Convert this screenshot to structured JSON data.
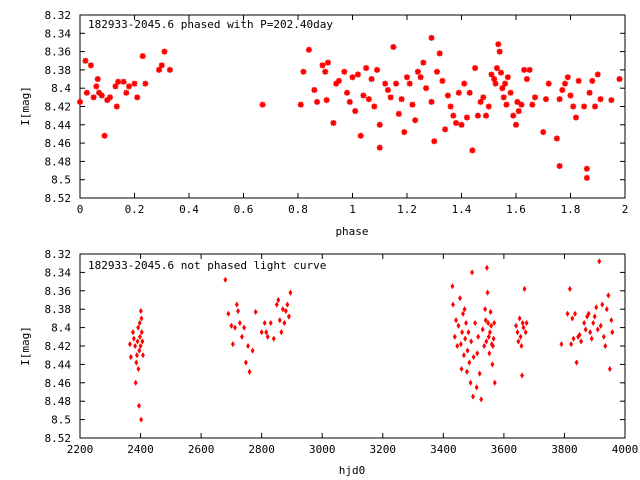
{
  "chart_data": [
    {
      "type": "scatter",
      "title": "182933-2045.6 phased with P=202.40day",
      "xlabel": "phase",
      "ylabel": "I[mag]",
      "xlim": [
        0,
        2
      ],
      "ylim": [
        8.52,
        8.32
      ],
      "y_inverted": true,
      "grid": false,
      "marker": "star",
      "color": "#ff0000",
      "xticks": [
        "0",
        "0.2",
        "0.4",
        "0.6",
        "0.8",
        "1",
        "1.2",
        "1.4",
        "1.6",
        "1.8",
        "2"
      ],
      "yticks": [
        "8.32",
        "8.34",
        "8.36",
        "8.38",
        "8.4",
        "8.42",
        "8.44",
        "8.46",
        "8.48",
        "8.5",
        "8.52"
      ],
      "points": [
        [
          0.0,
          8.415
        ],
        [
          0.02,
          8.37
        ],
        [
          0.025,
          8.405
        ],
        [
          0.04,
          8.375
        ],
        [
          0.05,
          8.41
        ],
        [
          0.06,
          8.398
        ],
        [
          0.065,
          8.39
        ],
        [
          0.07,
          8.405
        ],
        [
          0.08,
          8.408
        ],
        [
          0.09,
          8.452
        ],
        [
          0.1,
          8.413
        ],
        [
          0.11,
          8.41
        ],
        [
          0.13,
          8.398
        ],
        [
          0.135,
          8.42
        ],
        [
          0.14,
          8.393
        ],
        [
          0.16,
          8.393
        ],
        [
          0.17,
          8.405
        ],
        [
          0.18,
          8.398
        ],
        [
          0.2,
          8.395
        ],
        [
          0.21,
          8.41
        ],
        [
          0.23,
          8.365
        ],
        [
          0.24,
          8.395
        ],
        [
          0.29,
          8.38
        ],
        [
          0.3,
          8.375
        ],
        [
          0.31,
          8.36
        ],
        [
          0.33,
          8.38
        ],
        [
          0.67,
          8.418
        ],
        [
          0.81,
          8.418
        ],
        [
          0.82,
          8.382
        ],
        [
          0.84,
          8.358
        ],
        [
          0.86,
          8.402
        ],
        [
          0.87,
          8.415
        ],
        [
          0.89,
          8.375
        ],
        [
          0.9,
          8.382
        ],
        [
          0.905,
          8.413
        ],
        [
          0.91,
          8.372
        ],
        [
          0.93,
          8.438
        ],
        [
          0.94,
          8.395
        ],
        [
          0.95,
          8.392
        ],
        [
          0.97,
          8.382
        ],
        [
          0.98,
          8.405
        ],
        [
          0.99,
          8.415
        ],
        [
          1.0,
          8.388
        ],
        [
          1.01,
          8.425
        ],
        [
          1.02,
          8.385
        ],
        [
          1.03,
          8.452
        ],
        [
          1.04,
          8.408
        ],
        [
          1.05,
          8.378
        ],
        [
          1.06,
          8.412
        ],
        [
          1.07,
          8.39
        ],
        [
          1.08,
          8.42
        ],
        [
          1.09,
          8.38
        ],
        [
          1.1,
          8.44
        ],
        [
          1.1,
          8.465
        ],
        [
          1.12,
          8.395
        ],
        [
          1.13,
          8.402
        ],
        [
          1.14,
          8.41
        ],
        [
          1.15,
          8.355
        ],
        [
          1.16,
          8.395
        ],
        [
          1.17,
          8.428
        ],
        [
          1.18,
          8.412
        ],
        [
          1.19,
          8.448
        ],
        [
          1.2,
          8.388
        ],
        [
          1.21,
          8.395
        ],
        [
          1.22,
          8.418
        ],
        [
          1.23,
          8.435
        ],
        [
          1.24,
          8.382
        ],
        [
          1.25,
          8.388
        ],
        [
          1.26,
          8.372
        ],
        [
          1.27,
          8.4
        ],
        [
          1.29,
          8.415
        ],
        [
          1.29,
          8.345
        ],
        [
          1.3,
          8.458
        ],
        [
          1.31,
          8.382
        ],
        [
          1.32,
          8.362
        ],
        [
          1.33,
          8.392
        ],
        [
          1.34,
          8.445
        ],
        [
          1.35,
          8.408
        ],
        [
          1.36,
          8.42
        ],
        [
          1.37,
          8.43
        ],
        [
          1.38,
          8.438
        ],
        [
          1.39,
          8.405
        ],
        [
          1.4,
          8.44
        ],
        [
          1.41,
          8.395
        ],
        [
          1.42,
          8.432
        ],
        [
          1.43,
          8.405
        ],
        [
          1.44,
          8.468
        ],
        [
          1.45,
          8.378
        ],
        [
          1.46,
          8.43
        ],
        [
          1.47,
          8.415
        ],
        [
          1.48,
          8.41
        ],
        [
          1.49,
          8.43
        ],
        [
          1.5,
          8.42
        ],
        [
          1.51,
          8.385
        ],
        [
          1.52,
          8.39
        ],
        [
          1.525,
          8.395
        ],
        [
          1.53,
          8.378
        ],
        [
          1.535,
          8.352
        ],
        [
          1.54,
          8.36
        ],
        [
          1.545,
          8.383
        ],
        [
          1.55,
          8.4
        ],
        [
          1.555,
          8.41
        ],
        [
          1.56,
          8.395
        ],
        [
          1.565,
          8.418
        ],
        [
          1.57,
          8.388
        ],
        [
          1.58,
          8.405
        ],
        [
          1.59,
          8.43
        ],
        [
          1.6,
          8.44
        ],
        [
          1.605,
          8.415
        ],
        [
          1.61,
          8.425
        ],
        [
          1.62,
          8.418
        ],
        [
          1.63,
          8.38
        ],
        [
          1.64,
          8.39
        ],
        [
          1.65,
          8.38
        ],
        [
          1.66,
          8.418
        ],
        [
          1.67,
          8.41
        ],
        [
          1.7,
          8.448
        ],
        [
          1.71,
          8.412
        ],
        [
          1.72,
          8.395
        ],
        [
          1.75,
          8.455
        ],
        [
          1.76,
          8.412
        ],
        [
          1.77,
          8.402
        ],
        [
          1.78,
          8.395
        ],
        [
          1.79,
          8.388
        ],
        [
          1.8,
          8.408
        ],
        [
          1.81,
          8.42
        ],
        [
          1.82,
          8.432
        ],
        [
          1.83,
          8.392
        ],
        [
          1.85,
          8.42
        ],
        [
          1.86,
          8.498
        ],
        [
          1.87,
          8.405
        ],
        [
          1.88,
          8.392
        ],
        [
          1.89,
          8.42
        ],
        [
          1.9,
          8.385
        ],
        [
          1.91,
          8.412
        ],
        [
          1.95,
          8.413
        ],
        [
          1.98,
          8.39
        ],
        [
          1.76,
          8.485
        ],
        [
          1.86,
          8.488
        ]
      ]
    },
    {
      "type": "scatter",
      "title": "182933-2045.6 not phased light curve",
      "xlabel": "hjd0",
      "ylabel": "I[mag]",
      "xlim": [
        2200,
        4000
      ],
      "ylim": [
        8.52,
        8.32
      ],
      "y_inverted": true,
      "grid": false,
      "marker": "diamond",
      "color": "#ff0000",
      "xticks": [
        "2200",
        "2400",
        "2600",
        "2800",
        "3000",
        "3200",
        "3400",
        "3600",
        "3800",
        "4000"
      ],
      "yticks": [
        "8.32",
        "8.34",
        "8.36",
        "8.38",
        "8.4",
        "8.42",
        "8.44",
        "8.46",
        "8.48",
        "8.5",
        "8.52"
      ],
      "points": [
        [
          2365,
          8.418
        ],
        [
          2368,
          8.432
        ],
        [
          2375,
          8.405
        ],
        [
          2378,
          8.412
        ],
        [
          2382,
          8.42
        ],
        [
          2384,
          8.46
        ],
        [
          2386,
          8.438
        ],
        [
          2388,
          8.43
        ],
        [
          2390,
          8.415
        ],
        [
          2392,
          8.4
        ],
        [
          2393,
          8.445
        ],
        [
          2395,
          8.485
        ],
        [
          2396,
          8.425
        ],
        [
          2397,
          8.395
        ],
        [
          2398,
          8.41
        ],
        [
          2400,
          8.42
        ],
        [
          2401,
          8.382
        ],
        [
          2402,
          8.5
        ],
        [
          2403,
          8.39
        ],
        [
          2404,
          8.405
        ],
        [
          2406,
          8.415
        ],
        [
          2408,
          8.43
        ],
        [
          2680,
          8.348
        ],
        [
          2690,
          8.385
        ],
        [
          2700,
          8.398
        ],
        [
          2705,
          8.418
        ],
        [
          2712,
          8.4
        ],
        [
          2718,
          8.375
        ],
        [
          2722,
          8.382
        ],
        [
          2728,
          8.395
        ],
        [
          2735,
          8.41
        ],
        [
          2742,
          8.4
        ],
        [
          2748,
          8.438
        ],
        [
          2755,
          8.42
        ],
        [
          2760,
          8.448
        ],
        [
          2770,
          8.425
        ],
        [
          2780,
          8.383
        ],
        [
          2800,
          8.405
        ],
        [
          2810,
          8.395
        ],
        [
          2815,
          8.405
        ],
        [
          2820,
          8.41
        ],
        [
          2830,
          8.395
        ],
        [
          2840,
          8.412
        ],
        [
          2850,
          8.375
        ],
        [
          2855,
          8.37
        ],
        [
          2860,
          8.392
        ],
        [
          2865,
          8.405
        ],
        [
          2870,
          8.38
        ],
        [
          2875,
          8.395
        ],
        [
          2880,
          8.382
        ],
        [
          2885,
          8.375
        ],
        [
          2890,
          8.388
        ],
        [
          2895,
          8.362
        ],
        [
          3430,
          8.355
        ],
        [
          3432,
          8.375
        ],
        [
          3438,
          8.41
        ],
        [
          3442,
          8.392
        ],
        [
          3446,
          8.42
        ],
        [
          3450,
          8.398
        ],
        [
          3455,
          8.368
        ],
        [
          3458,
          8.418
        ],
        [
          3460,
          8.445
        ],
        [
          3462,
          8.405
        ],
        [
          3465,
          8.385
        ],
        [
          3468,
          8.43
        ],
        [
          3470,
          8.38
        ],
        [
          3472,
          8.412
        ],
        [
          3475,
          8.395
        ],
        [
          3478,
          8.448
        ],
        [
          3480,
          8.425
        ],
        [
          3483,
          8.405
        ],
        [
          3486,
          8.438
        ],
        [
          3490,
          8.46
        ],
        [
          3492,
          8.415
        ],
        [
          3495,
          8.34
        ],
        [
          3498,
          8.475
        ],
        [
          3500,
          8.432
        ],
        [
          3505,
          8.395
        ],
        [
          3510,
          8.465
        ],
        [
          3512,
          8.428
        ],
        [
          3515,
          8.41
        ],
        [
          3520,
          8.45
        ],
        [
          3525,
          8.478
        ],
        [
          3530,
          8.402
        ],
        [
          3535,
          8.42
        ],
        [
          3538,
          8.38
        ],
        [
          3540,
          8.392
        ],
        [
          3542,
          8.415
        ],
        [
          3544,
          8.335
        ],
        [
          3546,
          8.362
        ],
        [
          3548,
          8.395
        ],
        [
          3550,
          8.41
        ],
        [
          3552,
          8.428
        ],
        [
          3554,
          8.405
        ],
        [
          3556,
          8.383
        ],
        [
          3558,
          8.398
        ],
        [
          3560,
          8.418
        ],
        [
          3562,
          8.44
        ],
        [
          3564,
          8.42
        ],
        [
          3566,
          8.412
        ],
        [
          3568,
          8.395
        ],
        [
          3570,
          8.46
        ],
        [
          3640,
          8.398
        ],
        [
          3645,
          8.405
        ],
        [
          3648,
          8.415
        ],
        [
          3652,
          8.39
        ],
        [
          3655,
          8.41
        ],
        [
          3658,
          8.42
        ],
        [
          3660,
          8.452
        ],
        [
          3662,
          8.395
        ],
        [
          3665,
          8.4
        ],
        [
          3668,
          8.358
        ],
        [
          3672,
          8.405
        ],
        [
          3675,
          8.395
        ],
        [
          3790,
          8.418
        ],
        [
          3810,
          8.385
        ],
        [
          3818,
          8.358
        ],
        [
          3822,
          8.418
        ],
        [
          3826,
          8.39
        ],
        [
          3830,
          8.412
        ],
        [
          3835,
          8.385
        ],
        [
          3840,
          8.438
        ],
        [
          3845,
          8.41
        ],
        [
          3850,
          8.408
        ],
        [
          3855,
          8.415
        ],
        [
          3865,
          8.395
        ],
        [
          3870,
          8.402
        ],
        [
          3875,
          8.388
        ],
        [
          3880,
          8.385
        ],
        [
          3885,
          8.405
        ],
        [
          3890,
          8.412
        ],
        [
          3895,
          8.395
        ],
        [
          3900,
          8.388
        ],
        [
          3905,
          8.378
        ],
        [
          3910,
          8.402
        ],
        [
          3915,
          8.328
        ],
        [
          3920,
          8.398
        ],
        [
          3925,
          8.375
        ],
        [
          3930,
          8.41
        ],
        [
          3935,
          8.42
        ],
        [
          3940,
          8.38
        ],
        [
          3945,
          8.365
        ],
        [
          3950,
          8.445
        ],
        [
          3955,
          8.392
        ],
        [
          3958,
          8.405
        ]
      ]
    }
  ]
}
